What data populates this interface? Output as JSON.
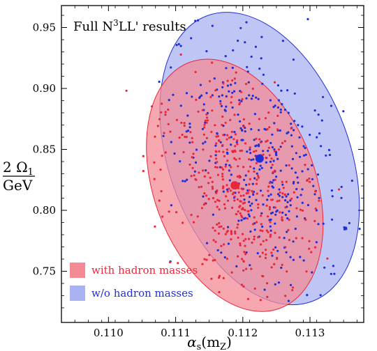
{
  "chart_data": {
    "type": "scatter",
    "title": "Full N³LL' results",
    "title_main": "Full N",
    "title_sup": "3",
    "title_rest": "LL' results",
    "xlabel_main": "α",
    "xlabel_sub": "s",
    "xlabel_paren": "(m",
    "xlabel_sub2": "Z",
    "xlabel_close": ")",
    "ylabel_num": "2 Ω",
    "ylabel_num_sub": "1",
    "ylabel_den": "GeV",
    "xlim": [
      0.1093,
      0.1138
    ],
    "ylim": [
      0.708,
      0.968
    ],
    "x_ticks": [
      0.11,
      0.111,
      0.112,
      0.113
    ],
    "x_tick_labels": [
      "0.110",
      "0.111",
      "0.112",
      "0.113"
    ],
    "y_ticks": [
      0.75,
      0.8,
      0.85,
      0.9,
      0.95
    ],
    "y_tick_labels": [
      "0.75",
      "0.80",
      "0.85",
      "0.90",
      "0.95"
    ],
    "grid": false,
    "legend_position": "bottom-left",
    "series": [
      {
        "name": "with hadron masses",
        "color": "#e8283a",
        "fill": "#f48a94",
        "center": [
          0.11188,
          0.8205
        ],
        "ellipse_bbox_x": [
          0.11055,
          0.11318
        ],
        "ellipse_bbox_y": [
          0.717,
          0.924
        ]
      },
      {
        "name": "w/o hadron masses",
        "color": "#1f2fd6",
        "fill": "#a9b3f2",
        "center": [
          0.11225,
          0.8425
        ],
        "ellipse_bbox_x": [
          0.11077,
          0.11374
        ],
        "ellipse_bbox_y": [
          0.722,
          0.962
        ]
      }
    ]
  }
}
